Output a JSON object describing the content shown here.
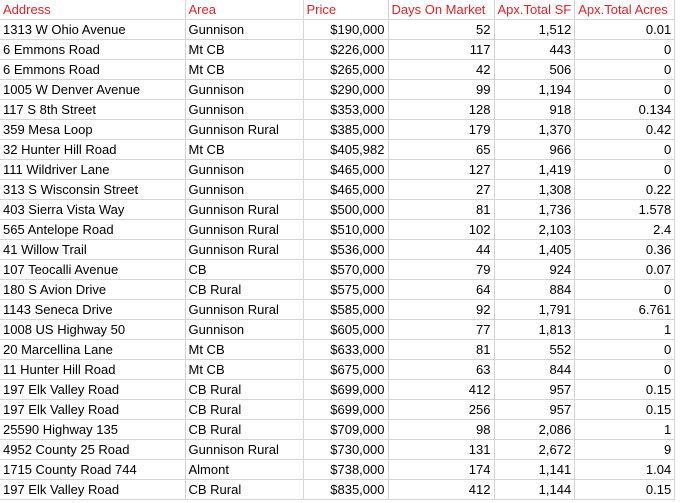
{
  "headers": [
    "Address",
    "Area",
    "Price",
    "Days On Market",
    "Apx.Total SF",
    "Apx.Total Acres"
  ],
  "header_color": "#d9252a",
  "rows": [
    [
      "1313 W Ohio Avenue",
      "Gunnison",
      "$190,000",
      "52",
      "1,512",
      "0.01"
    ],
    [
      "6 Emmons Road",
      "Mt CB",
      "$226,000",
      "117",
      "443",
      "0"
    ],
    [
      "6 Emmons Road",
      "Mt CB",
      "$265,000",
      "42",
      "506",
      "0"
    ],
    [
      "1005 W Denver Avenue",
      "Gunnison",
      "$290,000",
      "99",
      "1,194",
      "0"
    ],
    [
      "117 S 8th Street",
      "Gunnison",
      "$353,000",
      "128",
      "918",
      "0.134"
    ],
    [
      "359 Mesa Loop",
      "Gunnison Rural",
      "$385,000",
      "179",
      "1,370",
      "0.42"
    ],
    [
      "32 Hunter Hill Road",
      "Mt CB",
      "$405,982",
      "65",
      "966",
      "0"
    ],
    [
      "111 Wildriver Lane",
      "Gunnison",
      "$465,000",
      "127",
      "1,419",
      "0"
    ],
    [
      "313 S Wisconsin Street",
      "Gunnison",
      "$465,000",
      "27",
      "1,308",
      "0.22"
    ],
    [
      "403 Sierra Vista Way",
      "Gunnison Rural",
      "$500,000",
      "81",
      "1,736",
      "1.578"
    ],
    [
      "565 Antelope Road",
      "Gunnison Rural",
      "$510,000",
      "102",
      "2,103",
      "2.4"
    ],
    [
      "41 Willow Trail",
      "Gunnison Rural",
      "$536,000",
      "44",
      "1,405",
      "0.36"
    ],
    [
      "107 Teocalli Avenue",
      "CB",
      "$570,000",
      "79",
      "924",
      "0.07"
    ],
    [
      "180 S Avion Drive",
      "CB Rural",
      "$575,000",
      "64",
      "884",
      "0"
    ],
    [
      "1143 Seneca Drive",
      "Gunnison Rural",
      "$585,000",
      "92",
      "1,791",
      "6.761"
    ],
    [
      "1008 US Highway 50",
      "Gunnison",
      "$605,000",
      "77",
      "1,813",
      "1"
    ],
    [
      "20 Marcellina Lane",
      "Mt CB",
      "$633,000",
      "81",
      "552",
      "0"
    ],
    [
      "11 Hunter Hill Road",
      "Mt CB",
      "$675,000",
      "63",
      "844",
      "0"
    ],
    [
      "197 Elk Valley Road",
      "CB Rural",
      "$699,000",
      "412",
      "957",
      "0.15"
    ],
    [
      "197 Elk Valley Road",
      "CB Rural",
      "$699,000",
      "256",
      "957",
      "0.15"
    ],
    [
      "25590 Highway 135",
      "CB Rural",
      "$709,000",
      "98",
      "2,086",
      "1"
    ],
    [
      "4952 County 25 Road",
      "Gunnison Rural",
      "$730,000",
      "131",
      "2,672",
      "9"
    ],
    [
      "1715 County Road 744",
      "Almont",
      "$738,000",
      "174",
      "1,141",
      "1.04"
    ],
    [
      "197 Elk Valley Road",
      "CB Rural",
      "$835,000",
      "412",
      "1,144",
      "0.15"
    ]
  ]
}
